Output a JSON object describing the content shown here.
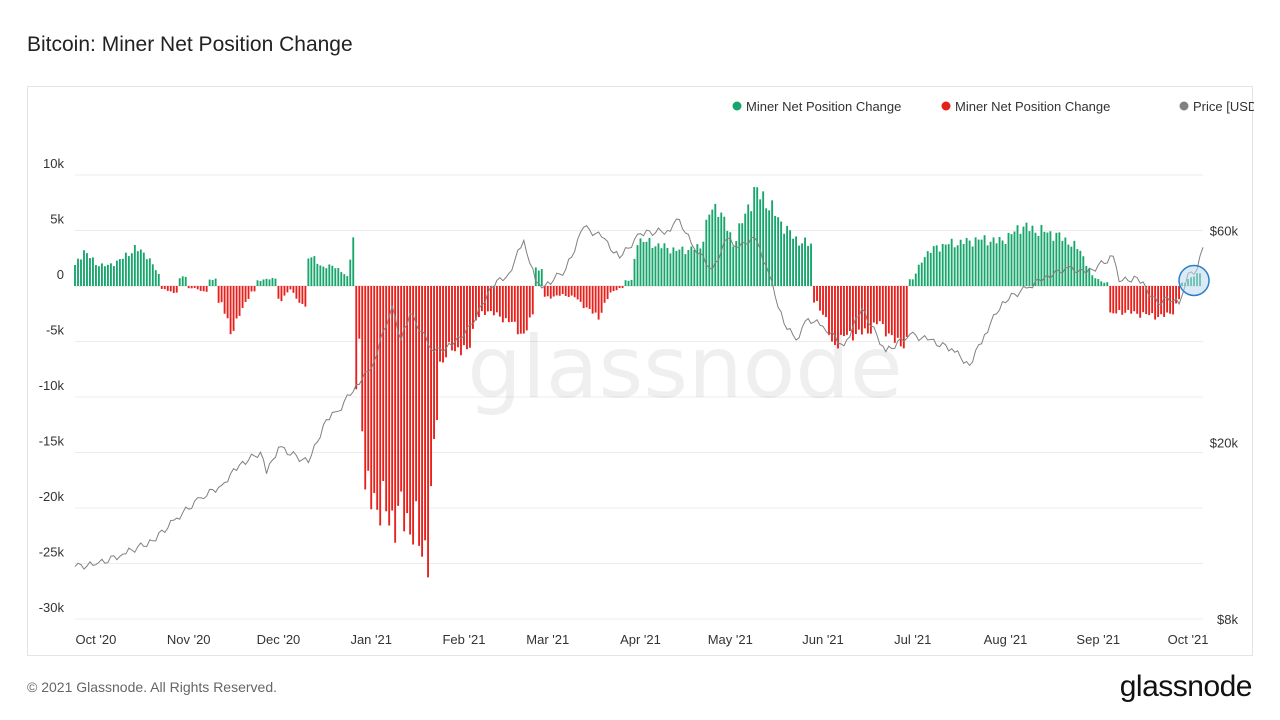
{
  "title": "Bitcoin: Miner Net Position Change",
  "footer": {
    "copyright": "© 2021 Glassnode. All Rights Reserved.",
    "logo": "glassnode"
  },
  "watermark": "glassnode",
  "colors": {
    "positive": "#16a56a",
    "negative": "#e8201c",
    "price": "#808080",
    "highlight_fill": "#bcd9f0",
    "highlight_stroke": "#2b7fc7"
  },
  "chart_data": {
    "type": "bar",
    "x_range": [
      "2020-09-24",
      "2021-10-06"
    ],
    "y_left": {
      "range": [
        -30000,
        10000
      ],
      "ticks": [
        10000,
        5000,
        0,
        -5000,
        -10000,
        -15000,
        -20000,
        -25000,
        -30000
      ],
      "tick_labels": [
        "10k",
        "5k",
        "0",
        "-5k",
        "-10k",
        "-15k",
        "-20k",
        "-25k",
        "-30k"
      ]
    },
    "y_right": {
      "scale": "log",
      "range": [
        8000,
        80000
      ],
      "ticks": [
        60000,
        20000,
        8000
      ],
      "tick_labels": [
        "$60k",
        "$20k",
        "$8k"
      ]
    },
    "x_ticks": [
      {
        "date": "2020-10-01",
        "label": "Oct '20"
      },
      {
        "date": "2020-11-01",
        "label": "Nov '20"
      },
      {
        "date": "2020-12-01",
        "label": "Dec '20"
      },
      {
        "date": "2021-01-01",
        "label": "Jan '21"
      },
      {
        "date": "2021-02-01",
        "label": "Feb '21"
      },
      {
        "date": "2021-03-01",
        "label": "Mar '21"
      },
      {
        "date": "2021-04-01",
        "label": "Apr '21"
      },
      {
        "date": "2021-05-01",
        "label": "May '21"
      },
      {
        "date": "2021-06-01",
        "label": "Jun '21"
      },
      {
        "date": "2021-07-01",
        "label": "Jul '21"
      },
      {
        "date": "2021-08-01",
        "label": "Aug '21"
      },
      {
        "date": "2021-09-01",
        "label": "Sep '21"
      },
      {
        "date": "2021-10-01",
        "label": "Oct '21"
      }
    ],
    "legend": [
      {
        "name": "Miner Net Position Change",
        "color": "#16a56a"
      },
      {
        "name": "Miner Net Position Change",
        "color": "#e8201c"
      },
      {
        "name": "Price [USD]",
        "color": "#808080"
      }
    ],
    "legend_position": "top-right",
    "grid": true,
    "net_position_keyframes": [
      [
        "2020-09-24",
        1800
      ],
      [
        "2020-09-27",
        3200
      ],
      [
        "2020-10-01",
        2000
      ],
      [
        "2020-10-05",
        1800
      ],
      [
        "2020-10-10",
        2500
      ],
      [
        "2020-10-14",
        3400
      ],
      [
        "2020-10-18",
        2800
      ],
      [
        "2020-10-22",
        1000
      ],
      [
        "2020-10-24",
        -300
      ],
      [
        "2020-10-27",
        -600
      ],
      [
        "2020-10-30",
        800
      ],
      [
        "2020-11-03",
        -200
      ],
      [
        "2020-11-06",
        -500
      ],
      [
        "2020-11-09",
        600
      ],
      [
        "2020-11-12",
        -1500
      ],
      [
        "2020-11-15",
        -4200
      ],
      [
        "2020-11-18",
        -2600
      ],
      [
        "2020-11-22",
        -500
      ],
      [
        "2020-11-25",
        500
      ],
      [
        "2020-11-29",
        700
      ],
      [
        "2020-12-02",
        -1200
      ],
      [
        "2020-12-05",
        -300
      ],
      [
        "2020-12-09",
        -1800
      ],
      [
        "2020-12-12",
        2600
      ],
      [
        "2020-12-16",
        1700
      ],
      [
        "2020-12-20",
        1800
      ],
      [
        "2020-12-24",
        800
      ],
      [
        "2020-12-26",
        4500
      ],
      [
        "2020-12-27",
        -9000
      ],
      [
        "2020-12-28",
        -5000
      ],
      [
        "2020-12-30",
        -18500
      ],
      [
        "2021-01-03",
        -19500
      ],
      [
        "2021-01-08",
        -21000
      ],
      [
        "2021-01-12",
        -20500
      ],
      [
        "2021-01-16",
        -22500
      ],
      [
        "2021-01-20",
        -24000
      ],
      [
        "2021-01-22",
        -15000
      ],
      [
        "2021-01-24",
        -7000
      ],
      [
        "2021-01-28",
        -5500
      ],
      [
        "2021-02-02",
        -6000
      ],
      [
        "2021-02-05",
        -3000
      ],
      [
        "2021-02-09",
        -2200
      ],
      [
        "2021-02-13",
        -2800
      ],
      [
        "2021-02-17",
        -3300
      ],
      [
        "2021-02-21",
        -4500
      ],
      [
        "2021-02-24",
        -2500
      ],
      [
        "2021-02-26",
        1500
      ],
      [
        "2021-03-02",
        -1000
      ],
      [
        "2021-03-06",
        -800
      ],
      [
        "2021-03-10",
        -1000
      ],
      [
        "2021-03-14",
        -2000
      ],
      [
        "2021-03-18",
        -2800
      ],
      [
        "2021-03-22",
        -600
      ],
      [
        "2021-03-25",
        -200
      ],
      [
        "2021-03-29",
        500
      ],
      [
        "2021-03-31",
        4200
      ],
      [
        "2021-04-05",
        3800
      ],
      [
        "2021-04-09",
        3500
      ],
      [
        "2021-04-13",
        3200
      ],
      [
        "2021-04-17",
        3300
      ],
      [
        "2021-04-21",
        3500
      ],
      [
        "2021-04-24",
        6500
      ],
      [
        "2021-04-27",
        7200
      ],
      [
        "2021-05-02",
        3800
      ],
      [
        "2021-05-06",
        6400
      ],
      [
        "2021-05-09",
        8500
      ],
      [
        "2021-05-12",
        8000
      ],
      [
        "2021-05-16",
        6500
      ],
      [
        "2021-05-20",
        5000
      ],
      [
        "2021-05-24",
        4000
      ],
      [
        "2021-05-27",
        3800
      ],
      [
        "2021-05-30",
        -1500
      ],
      [
        "2021-06-02",
        -3000
      ],
      [
        "2021-06-04",
        -5500
      ],
      [
        "2021-06-08",
        -4500
      ],
      [
        "2021-06-12",
        -4300
      ],
      [
        "2021-06-16",
        -4100
      ],
      [
        "2021-06-20",
        -3200
      ],
      [
        "2021-06-24",
        -4800
      ],
      [
        "2021-06-28",
        -5200
      ],
      [
        "2021-07-01",
        600
      ],
      [
        "2021-07-05",
        2800
      ],
      [
        "2021-07-09",
        3500
      ],
      [
        "2021-07-13",
        3800
      ],
      [
        "2021-07-17",
        3900
      ],
      [
        "2021-07-21",
        4100
      ],
      [
        "2021-07-25",
        4200
      ],
      [
        "2021-07-29",
        4000
      ],
      [
        "2021-08-02",
        4400
      ],
      [
        "2021-08-06",
        5400
      ],
      [
        "2021-08-10",
        5100
      ],
      [
        "2021-08-14",
        4900
      ],
      [
        "2021-08-18",
        4600
      ],
      [
        "2021-08-22",
        4000
      ],
      [
        "2021-08-26",
        3200
      ],
      [
        "2021-08-30",
        900
      ],
      [
        "2021-09-03",
        300
      ],
      [
        "2021-09-06",
        -2500
      ],
      [
        "2021-09-10",
        -2300
      ],
      [
        "2021-09-14",
        -2500
      ],
      [
        "2021-09-18",
        -2600
      ],
      [
        "2021-09-22",
        -2800
      ],
      [
        "2021-09-26",
        -2300
      ],
      [
        "2021-09-28",
        -1200
      ],
      [
        "2021-09-30",
        300
      ],
      [
        "2021-10-02",
        800
      ],
      [
        "2021-10-04",
        1100
      ],
      [
        "2021-10-05",
        1200
      ]
    ],
    "price_usd": [
      [
        "2020-09-24",
        10500
      ],
      [
        "2020-10-01",
        10600
      ],
      [
        "2020-10-10",
        11200
      ],
      [
        "2020-10-20",
        12000
      ],
      [
        "2020-10-28",
        13500
      ],
      [
        "2020-11-05",
        15000
      ],
      [
        "2020-11-12",
        16000
      ],
      [
        "2020-11-18",
        17800
      ],
      [
        "2020-11-25",
        19000
      ],
      [
        "2020-11-27",
        17000
      ],
      [
        "2020-12-01",
        19500
      ],
      [
        "2020-12-11",
        18000
      ],
      [
        "2020-12-17",
        22500
      ],
      [
        "2020-12-21",
        23500
      ],
      [
        "2020-12-27",
        27000
      ],
      [
        "2021-01-01",
        29300
      ],
      [
        "2021-01-08",
        40500
      ],
      [
        "2021-01-11",
        34000
      ],
      [
        "2021-01-14",
        39000
      ],
      [
        "2021-01-22",
        32000
      ],
      [
        "2021-01-28",
        33000
      ],
      [
        "2021-02-04",
        37000
      ],
      [
        "2021-02-10",
        44800
      ],
      [
        "2021-02-16",
        48000
      ],
      [
        "2021-02-21",
        57000
      ],
      [
        "2021-02-25",
        46000
      ],
      [
        "2021-02-28",
        45000
      ],
      [
        "2021-03-07",
        49000
      ],
      [
        "2021-03-13",
        61000
      ],
      [
        "2021-03-19",
        58000
      ],
      [
        "2021-03-25",
        52000
      ],
      [
        "2021-04-01",
        59000
      ],
      [
        "2021-04-10",
        60000
      ],
      [
        "2021-04-14",
        63500
      ],
      [
        "2021-04-18",
        56000
      ],
      [
        "2021-04-25",
        49000
      ],
      [
        "2021-04-30",
        57500
      ],
      [
        "2021-05-04",
        55000
      ],
      [
        "2021-05-09",
        58000
      ],
      [
        "2021-05-13",
        50000
      ],
      [
        "2021-05-19",
        37000
      ],
      [
        "2021-05-23",
        34000
      ],
      [
        "2021-05-27",
        38000
      ],
      [
        "2021-06-01",
        36500
      ],
      [
        "2021-06-08",
        33000
      ],
      [
        "2021-06-14",
        40000
      ],
      [
        "2021-06-22",
        32000
      ],
      [
        "2021-06-30",
        35000
      ],
      [
        "2021-07-06",
        34000
      ],
      [
        "2021-07-14",
        32500
      ],
      [
        "2021-07-20",
        29800
      ],
      [
        "2021-07-25",
        35000
      ],
      [
        "2021-07-31",
        41500
      ],
      [
        "2021-08-08",
        44500
      ],
      [
        "2021-08-14",
        47000
      ],
      [
        "2021-08-22",
        49500
      ],
      [
        "2021-08-28",
        48000
      ],
      [
        "2021-09-06",
        52500
      ],
      [
        "2021-09-08",
        46000
      ],
      [
        "2021-09-14",
        47000
      ],
      [
        "2021-09-21",
        41000
      ],
      [
        "2021-09-24",
        42500
      ],
      [
        "2021-09-28",
        41000
      ],
      [
        "2021-10-01",
        48000
      ],
      [
        "2021-10-04",
        49000
      ],
      [
        "2021-10-06",
        55000
      ]
    ],
    "highlight": {
      "type": "circle",
      "center_date": "2021-10-03",
      "center_value": 500
    }
  }
}
